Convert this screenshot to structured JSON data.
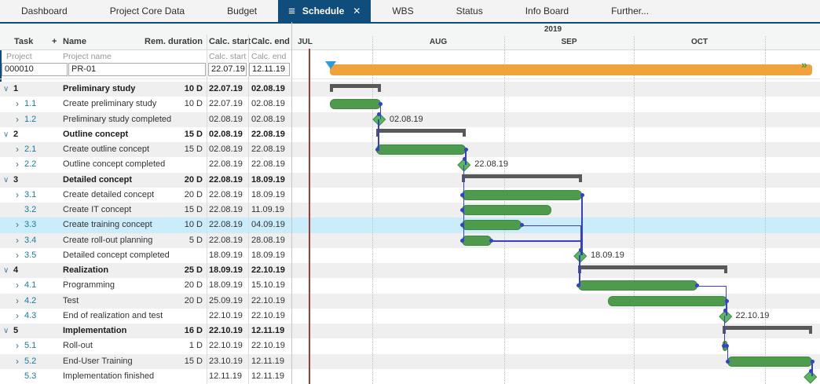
{
  "tabs": {
    "items": [
      {
        "label": "Dashboard",
        "active": false
      },
      {
        "label": "Project Core Data",
        "active": false
      },
      {
        "label": "Budget",
        "active": false
      },
      {
        "label": "Schedule",
        "active": true
      },
      {
        "label": "WBS",
        "active": false
      },
      {
        "label": "Status",
        "active": false
      },
      {
        "label": "Info Board",
        "active": false
      },
      {
        "label": "Further...",
        "active": false
      }
    ],
    "active_tab_icons": {
      "menu_icon": "≡",
      "close_icon": "✕"
    }
  },
  "table": {
    "columns": {
      "task": "Task",
      "add_icon": "+",
      "name": "Name",
      "rem_duration": "Rem. duration",
      "calc_start": "Calc. start",
      "calc_end": "Calc. end"
    },
    "subheader": {
      "project": "Project",
      "project_name": "Project name",
      "calc_start": "Calc. start",
      "calc_end": "Calc. end"
    },
    "project_row": {
      "id": "000010",
      "name": "PR-01",
      "calc_start": "22.07.19",
      "calc_end": "12.11.19"
    }
  },
  "timeline": {
    "year": "2019",
    "months": [
      "JUL",
      "AUG",
      "SEP",
      "OCT"
    ]
  },
  "tasks": [
    {
      "id": "1",
      "name": "Preliminary study",
      "duration": "10 D",
      "start": "22.07.19",
      "end": "02.08.19",
      "caret": "down",
      "type": "summary",
      "selected": false,
      "chart_label": ""
    },
    {
      "id": "1.1",
      "name": "Create preliminary study",
      "duration": "10 D",
      "start": "22.07.19",
      "end": "02.08.19",
      "caret": "right",
      "type": "bar",
      "selected": false,
      "chart_label": ""
    },
    {
      "id": "1.2",
      "name": "Preliminary study completed",
      "duration": "",
      "start": "02.08.19",
      "end": "02.08.19",
      "caret": "right",
      "type": "milestone",
      "selected": false,
      "chart_label": "02.08.19"
    },
    {
      "id": "2",
      "name": "Outline concept",
      "duration": "15 D",
      "start": "02.08.19",
      "end": "22.08.19",
      "caret": "down",
      "type": "summary",
      "selected": false,
      "chart_label": ""
    },
    {
      "id": "2.1",
      "name": "Create outline concept",
      "duration": "15 D",
      "start": "02.08.19",
      "end": "22.08.19",
      "caret": "right",
      "type": "bar",
      "selected": false,
      "chart_label": ""
    },
    {
      "id": "2.2",
      "name": "Outline concept completed",
      "duration": "",
      "start": "22.08.19",
      "end": "22.08.19",
      "caret": "right",
      "type": "milestone",
      "selected": false,
      "chart_label": "22.08.19"
    },
    {
      "id": "3",
      "name": "Detailed concept",
      "duration": "20 D",
      "start": "22.08.19",
      "end": "18.09.19",
      "caret": "down",
      "type": "summary",
      "selected": false,
      "chart_label": ""
    },
    {
      "id": "3.1",
      "name": "Create detailed concept",
      "duration": "20 D",
      "start": "22.08.19",
      "end": "18.09.19",
      "caret": "right",
      "type": "bar",
      "selected": false,
      "chart_label": ""
    },
    {
      "id": "3.2",
      "name": "Create IT concept",
      "duration": "15 D",
      "start": "22.08.19",
      "end": "11.09.19",
      "caret": "none",
      "type": "bar",
      "selected": false,
      "chart_label": ""
    },
    {
      "id": "3.3",
      "name": "Create training concept",
      "duration": "10 D",
      "start": "22.08.19",
      "end": "04.09.19",
      "caret": "right",
      "type": "bar",
      "selected": true,
      "chart_label": ""
    },
    {
      "id": "3.4",
      "name": "Create roll-out planning",
      "duration": "5 D",
      "start": "22.08.19",
      "end": "28.08.19",
      "caret": "right",
      "type": "bar",
      "selected": false,
      "chart_label": ""
    },
    {
      "id": "3.5",
      "name": "Detailed concept completed",
      "duration": "",
      "start": "18.09.19",
      "end": "18.09.19",
      "caret": "right",
      "type": "milestone",
      "selected": false,
      "chart_label": "18.09.19"
    },
    {
      "id": "4",
      "name": "Realization",
      "duration": "25 D",
      "start": "18.09.19",
      "end": "22.10.19",
      "caret": "down",
      "type": "summary",
      "selected": false,
      "chart_label": ""
    },
    {
      "id": "4.1",
      "name": "Programming",
      "duration": "20 D",
      "start": "18.09.19",
      "end": "15.10.19",
      "caret": "right",
      "type": "bar",
      "selected": false,
      "chart_label": ""
    },
    {
      "id": "4.2",
      "name": "Test",
      "duration": "20 D",
      "start": "25.09.19",
      "end": "22.10.19",
      "caret": "right",
      "type": "bar",
      "selected": false,
      "chart_label": ""
    },
    {
      "id": "4.3",
      "name": "End of realization and test",
      "duration": "",
      "start": "22.10.19",
      "end": "22.10.19",
      "caret": "right",
      "type": "milestone",
      "selected": false,
      "chart_label": "22.10.19"
    },
    {
      "id": "5",
      "name": "Implementation",
      "duration": "16 D",
      "start": "22.10.19",
      "end": "12.11.19",
      "caret": "down",
      "type": "summary",
      "selected": false,
      "chart_label": ""
    },
    {
      "id": "5.1",
      "name": "Roll-out",
      "duration": "1 D",
      "start": "22.10.19",
      "end": "22.10.19",
      "caret": "right",
      "type": "bar",
      "selected": false,
      "chart_label": ""
    },
    {
      "id": "5.2",
      "name": "End-User Training",
      "duration": "15 D",
      "start": "23.10.19",
      "end": "12.11.19",
      "caret": "right",
      "type": "bar",
      "selected": false,
      "chart_label": ""
    },
    {
      "id": "5.3",
      "name": "Implementation finished",
      "duration": "",
      "start": "12.11.19",
      "end": "12.11.19",
      "caret": "none",
      "type": "milestone",
      "selected": false,
      "chart_label": ""
    }
  ],
  "links": [
    {
      "from": "1.1",
      "to": "1.2"
    },
    {
      "from": "1.2",
      "to": "2.1"
    },
    {
      "from": "2.1",
      "to": "2.2"
    },
    {
      "from": "2.2",
      "to": "3.1"
    },
    {
      "from": "2.2",
      "to": "3.2"
    },
    {
      "from": "2.2",
      "to": "3.3"
    },
    {
      "from": "2.2",
      "to": "3.4"
    },
    {
      "from": "3.1",
      "to": "3.5"
    },
    {
      "from": "3.3",
      "to": "3.5"
    },
    {
      "from": "3.4",
      "to": "3.5"
    },
    {
      "from": "3.5",
      "to": "4.1"
    },
    {
      "from": "4.1",
      "to": "4.3"
    },
    {
      "from": "4.2",
      "to": "4.3"
    },
    {
      "from": "4.3",
      "to": "5.1"
    },
    {
      "from": "5.1",
      "to": "5.2"
    },
    {
      "from": "5.2",
      "to": "5.3"
    }
  ],
  "colors": {
    "accent_navy": "#0f4e7c",
    "bar_green": "#4e9b4e",
    "milestone_green": "#5bb75b",
    "project_orange": "#f2a23a",
    "summary_gray": "#595959",
    "connector_blue": "#3540cf",
    "selected_row": "#cbecfa",
    "stripe_gray": "#efefef",
    "timeline_red_line": "#9c3e32",
    "task_id_blue": "#1879a9",
    "project_start_marker_blue": "#2d9cdb"
  }
}
